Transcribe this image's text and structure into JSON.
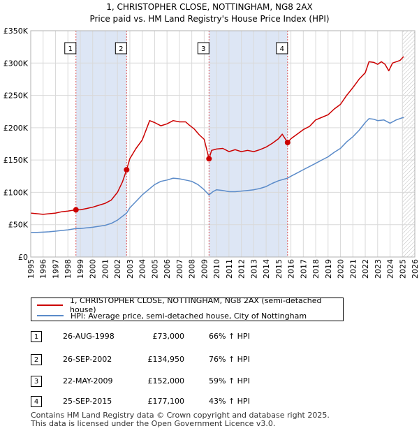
{
  "chart_data": {
    "type": "line",
    "title": "1, CHRISTOPHER CLOSE, NOTTINGHAM, NG8 2AX",
    "subtitle": "Price paid vs. HM Land Registry's House Price Index (HPI)",
    "xlim": [
      1995,
      2026
    ],
    "ylim": [
      0,
      350000
    ],
    "y_ticks": [
      {
        "value": 0,
        "label": "£0"
      },
      {
        "value": 50000,
        "label": "£50K"
      },
      {
        "value": 100000,
        "label": "£100K"
      },
      {
        "value": 150000,
        "label": "£150K"
      },
      {
        "value": 200000,
        "label": "£200K"
      },
      {
        "value": 250000,
        "label": "£250K"
      },
      {
        "value": 300000,
        "label": "£300K"
      },
      {
        "value": 350000,
        "label": "£350K"
      }
    ],
    "x_ticks": [
      "1995",
      "1996",
      "1997",
      "1998",
      "1999",
      "2000",
      "2001",
      "2002",
      "2003",
      "2004",
      "2005",
      "2006",
      "2007",
      "2008",
      "2009",
      "2010",
      "2011",
      "2012",
      "2013",
      "2014",
      "2015",
      "2016",
      "2017",
      "2018",
      "2019",
      "2020",
      "2021",
      "2022",
      "2023",
      "2024",
      "2025",
      "2026"
    ],
    "grid": true,
    "shaded_spans": [
      [
        1998.65,
        2002.74
      ],
      [
        2009.39,
        2015.73
      ]
    ],
    "hatched_after": 2025.0,
    "series": [
      {
        "name": "1, CHRISTOPHER CLOSE, NOTTINGHAM, NG8 2AX (semi-detached house)",
        "color": "#cc0000",
        "x": [
          1995.0,
          1995.5,
          1996.0,
          1996.5,
          1997.0,
          1997.5,
          1998.0,
          1998.65,
          1999.0,
          1999.5,
          2000.0,
          2000.5,
          2001.0,
          2001.5,
          2002.0,
          2002.4,
          2002.74,
          2003.0,
          2003.5,
          2004.0,
          2004.3,
          2004.6,
          2005.0,
          2005.5,
          2006.0,
          2006.5,
          2007.0,
          2007.5,
          2007.8,
          2008.2,
          2008.6,
          2009.0,
          2009.39,
          2009.6,
          2010.0,
          2010.5,
          2011.0,
          2011.5,
          2012.0,
          2012.5,
          2013.0,
          2013.5,
          2014.0,
          2014.5,
          2015.0,
          2015.3,
          2015.73,
          2016.0,
          2016.5,
          2017.0,
          2017.5,
          2018.0,
          2018.5,
          2019.0,
          2019.5,
          2020.0,
          2020.5,
          2021.0,
          2021.5,
          2022.0,
          2022.3,
          2022.7,
          2023.0,
          2023.3,
          2023.6,
          2023.9,
          2024.2,
          2024.5,
          2024.8,
          2025.1
        ],
        "values": [
          68000,
          67000,
          66000,
          67000,
          68000,
          70000,
          71000,
          73000,
          73000,
          75000,
          77000,
          80000,
          83000,
          88000,
          100000,
          116000,
          134950,
          152000,
          168000,
          181000,
          196000,
          211000,
          208000,
          203000,
          206000,
          211000,
          209000,
          209000,
          204000,
          198000,
          189000,
          182000,
          152000,
          165000,
          167000,
          168000,
          163000,
          166000,
          163000,
          165000,
          163000,
          166000,
          170000,
          176000,
          183000,
          190000,
          177100,
          183000,
          190000,
          197000,
          202000,
          212000,
          216000,
          220000,
          229000,
          236000,
          250000,
          262000,
          275000,
          285000,
          302000,
          301000,
          298000,
          302000,
          298000,
          288000,
          300000,
          302000,
          304000,
          310000
        ]
      },
      {
        "name": "HPI: Average price, semi-detached house, City of Nottingham",
        "color": "#5b8bc9",
        "x": [
          1995.0,
          1995.5,
          1996.0,
          1996.5,
          1997.0,
          1997.5,
          1998.0,
          1998.65,
          1999.0,
          1999.5,
          2000.0,
          2000.5,
          2001.0,
          2001.5,
          2002.0,
          2002.74,
          2003.0,
          2003.5,
          2004.0,
          2004.5,
          2005.0,
          2005.5,
          2006.0,
          2006.5,
          2007.0,
          2007.5,
          2008.0,
          2008.5,
          2009.0,
          2009.39,
          2009.7,
          2010.0,
          2010.5,
          2011.0,
          2011.5,
          2012.0,
          2012.5,
          2013.0,
          2013.5,
          2014.0,
          2014.5,
          2015.0,
          2015.73,
          2016.0,
          2016.5,
          2017.0,
          2017.5,
          2018.0,
          2018.5,
          2019.0,
          2019.5,
          2020.0,
          2020.5,
          2021.0,
          2021.5,
          2022.0,
          2022.3,
          2022.7,
          2023.0,
          2023.5,
          2024.0,
          2024.5,
          2025.1
        ],
        "values": [
          38000,
          38000,
          38500,
          39000,
          40000,
          41000,
          42000,
          44000,
          44000,
          45000,
          46000,
          47500,
          49000,
          52000,
          57000,
          68000,
          76000,
          86000,
          96000,
          104000,
          112000,
          117000,
          119000,
          122000,
          121000,
          119000,
          117000,
          112000,
          104000,
          96000,
          101000,
          104000,
          103000,
          101000,
          101000,
          102000,
          103000,
          104000,
          106000,
          109000,
          114000,
          118000,
          122000,
          125000,
          130000,
          135000,
          140000,
          145000,
          150000,
          155000,
          162000,
          168000,
          178000,
          186000,
          196000,
          208000,
          214000,
          213000,
          211000,
          212000,
          207000,
          212000,
          216000
        ]
      }
    ],
    "sales": [
      {
        "num": "1",
        "x": 1998.65,
        "value": 73000
      },
      {
        "num": "2",
        "x": 2002.74,
        "value": 134950
      },
      {
        "num": "3",
        "x": 2009.39,
        "value": 152000
      },
      {
        "num": "4",
        "x": 2015.73,
        "value": 177100
      }
    ]
  },
  "legend": {
    "property": "1, CHRISTOPHER CLOSE, NOTTINGHAM, NG8 2AX (semi-detached house)",
    "hpi": "HPI: Average price, semi-detached house, City of Nottingham"
  },
  "transactions": [
    {
      "num": "1",
      "date": "26-AUG-1998",
      "price": "£73,000",
      "hpi": "66% ↑ HPI"
    },
    {
      "num": "2",
      "date": "26-SEP-2002",
      "price": "£134,950",
      "hpi": "76% ↑ HPI"
    },
    {
      "num": "3",
      "date": "22-MAY-2009",
      "price": "£152,000",
      "hpi": "59% ↑ HPI"
    },
    {
      "num": "4",
      "date": "25-SEP-2015",
      "price": "£177,100",
      "hpi": "43% ↑ HPI"
    }
  ],
  "footer": {
    "line1": "Contains HM Land Registry data © Crown copyright and database right 2025.",
    "line2": "This data is licensed under the Open Government Licence v3.0."
  }
}
